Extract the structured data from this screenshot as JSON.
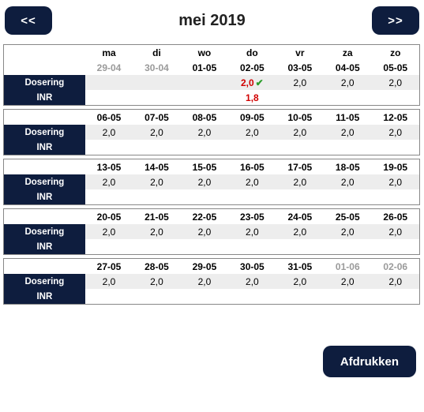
{
  "nav": {
    "prev": "<<",
    "next": ">>"
  },
  "title": "mei 2019",
  "day_headers": [
    "ma",
    "di",
    "wo",
    "do",
    "vr",
    "za",
    "zo"
  ],
  "row_labels": {
    "dose": "Dosering",
    "inr": "INR"
  },
  "weeks": [
    {
      "dates": [
        {
          "d": "29-04",
          "dim": true
        },
        {
          "d": "30-04",
          "dim": true
        },
        {
          "d": "01-05"
        },
        {
          "d": "02-05"
        },
        {
          "d": "03-05"
        },
        {
          "d": "04-05"
        },
        {
          "d": "05-05"
        }
      ],
      "dose": [
        {
          "v": ""
        },
        {
          "v": ""
        },
        {
          "v": ""
        },
        {
          "v": "2,0",
          "red": true,
          "check": true
        },
        {
          "v": "2,0"
        },
        {
          "v": "2,0"
        },
        {
          "v": "2,0"
        }
      ],
      "inr": [
        {
          "v": ""
        },
        {
          "v": ""
        },
        {
          "v": ""
        },
        {
          "v": "1,8",
          "red": true
        },
        {
          "v": ""
        },
        {
          "v": ""
        },
        {
          "v": ""
        }
      ]
    },
    {
      "dates": [
        {
          "d": "06-05"
        },
        {
          "d": "07-05"
        },
        {
          "d": "08-05"
        },
        {
          "d": "09-05"
        },
        {
          "d": "10-05"
        },
        {
          "d": "11-05"
        },
        {
          "d": "12-05"
        }
      ],
      "dose": [
        {
          "v": "2,0"
        },
        {
          "v": "2,0"
        },
        {
          "v": "2,0"
        },
        {
          "v": "2,0"
        },
        {
          "v": "2,0"
        },
        {
          "v": "2,0"
        },
        {
          "v": "2,0"
        }
      ],
      "inr": [
        {
          "v": ""
        },
        {
          "v": ""
        },
        {
          "v": ""
        },
        {
          "v": ""
        },
        {
          "v": ""
        },
        {
          "v": ""
        },
        {
          "v": ""
        }
      ]
    },
    {
      "dates": [
        {
          "d": "13-05"
        },
        {
          "d": "14-05"
        },
        {
          "d": "15-05"
        },
        {
          "d": "16-05"
        },
        {
          "d": "17-05"
        },
        {
          "d": "18-05"
        },
        {
          "d": "19-05"
        }
      ],
      "dose": [
        {
          "v": "2,0"
        },
        {
          "v": "2,0"
        },
        {
          "v": "2,0"
        },
        {
          "v": "2,0"
        },
        {
          "v": "2,0"
        },
        {
          "v": "2,0"
        },
        {
          "v": "2,0"
        }
      ],
      "inr": [
        {
          "v": ""
        },
        {
          "v": ""
        },
        {
          "v": ""
        },
        {
          "v": ""
        },
        {
          "v": ""
        },
        {
          "v": ""
        },
        {
          "v": ""
        }
      ]
    },
    {
      "dates": [
        {
          "d": "20-05"
        },
        {
          "d": "21-05"
        },
        {
          "d": "22-05"
        },
        {
          "d": "23-05"
        },
        {
          "d": "24-05"
        },
        {
          "d": "25-05"
        },
        {
          "d": "26-05"
        }
      ],
      "dose": [
        {
          "v": "2,0"
        },
        {
          "v": "2,0"
        },
        {
          "v": "2,0"
        },
        {
          "v": "2,0"
        },
        {
          "v": "2,0"
        },
        {
          "v": "2,0"
        },
        {
          "v": "2,0"
        }
      ],
      "inr": [
        {
          "v": ""
        },
        {
          "v": ""
        },
        {
          "v": ""
        },
        {
          "v": ""
        },
        {
          "v": ""
        },
        {
          "v": ""
        },
        {
          "v": ""
        }
      ]
    },
    {
      "dates": [
        {
          "d": "27-05"
        },
        {
          "d": "28-05"
        },
        {
          "d": "29-05"
        },
        {
          "d": "30-05"
        },
        {
          "d": "31-05"
        },
        {
          "d": "01-06",
          "dim": true
        },
        {
          "d": "02-06",
          "dim": true
        }
      ],
      "dose": [
        {
          "v": "2,0"
        },
        {
          "v": "2,0"
        },
        {
          "v": "2,0"
        },
        {
          "v": "2,0"
        },
        {
          "v": "2,0"
        },
        {
          "v": "2,0"
        },
        {
          "v": "2,0"
        }
      ],
      "inr": [
        {
          "v": ""
        },
        {
          "v": ""
        },
        {
          "v": ""
        },
        {
          "v": ""
        },
        {
          "v": ""
        },
        {
          "v": ""
        },
        {
          "v": ""
        }
      ]
    }
  ],
  "actions": {
    "print": "Afdrukken"
  },
  "check_glyph": "✔"
}
